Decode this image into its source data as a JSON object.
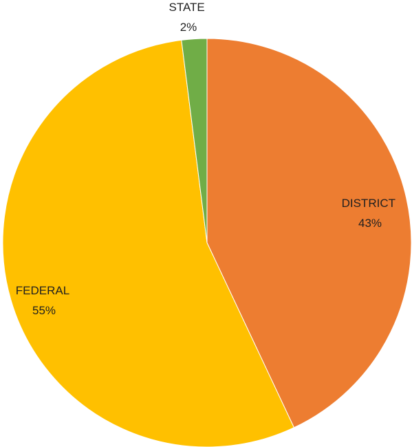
{
  "chart_data": {
    "type": "pie",
    "title": "",
    "slices": [
      {
        "label": "DISTRICT",
        "value": 43,
        "value_label": "43%",
        "color": "#ED7D31"
      },
      {
        "label": "FEDERAL",
        "value": 55,
        "value_label": "55%",
        "color": "#FFC000"
      },
      {
        "label": "STATE",
        "value": 2,
        "value_label": "2%",
        "color": "#70AD47"
      }
    ],
    "start_angle_deg": 0,
    "direction": "clockwise",
    "legend": "none",
    "data_labels": "category and percentage"
  }
}
